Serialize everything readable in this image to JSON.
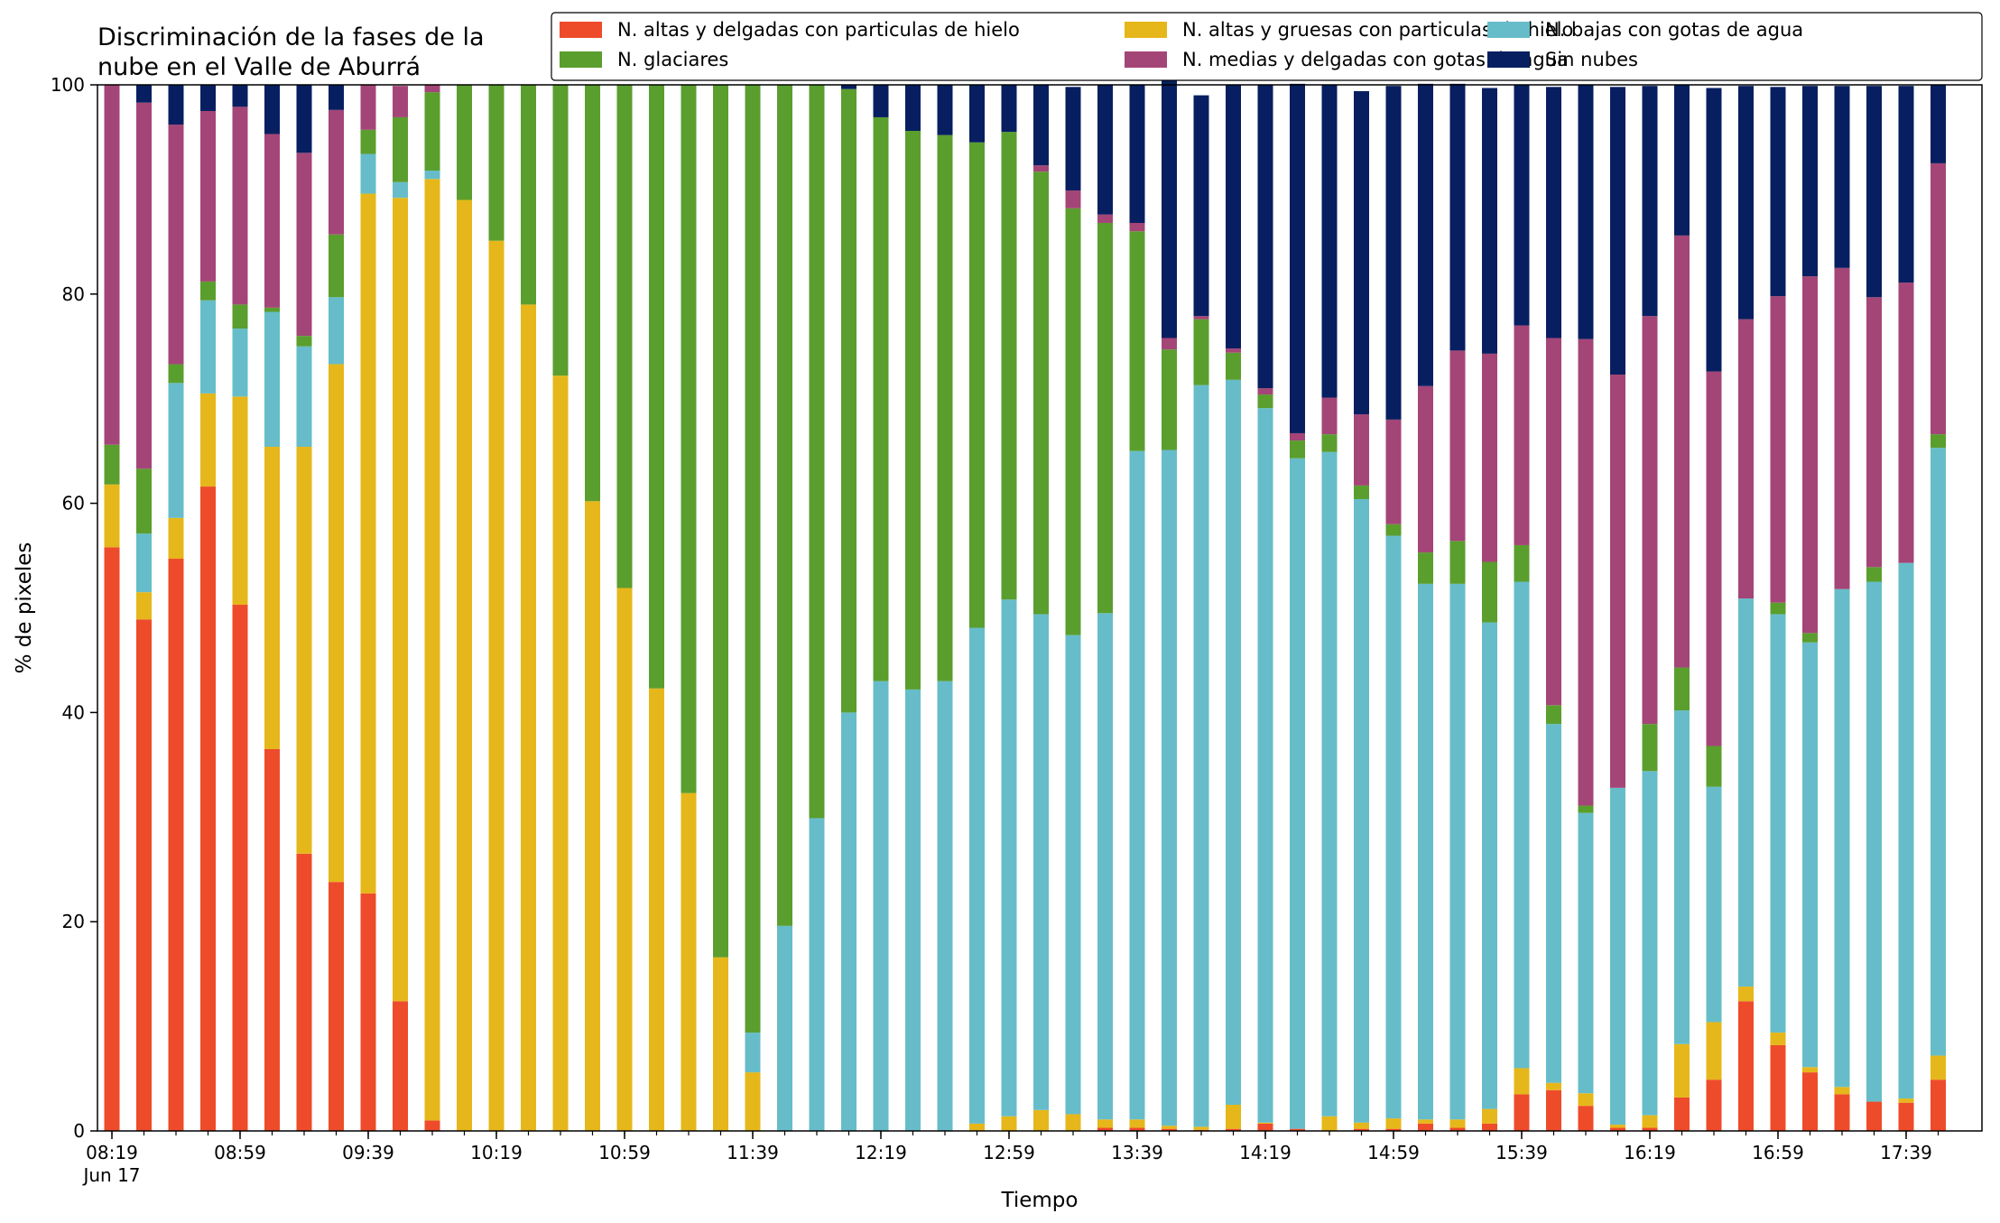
{
  "chart_data": {
    "type": "bar",
    "stacked": true,
    "title": [
      "Discriminación de la fases de la",
      "nube en el Valle de Aburrá"
    ],
    "xlabel": "Tiempo",
    "ylabel": "% de pixeles",
    "ylim": [
      0,
      100
    ],
    "yticks": [
      0,
      20,
      40,
      60,
      80,
      100
    ],
    "xtick_labels": [
      {
        "index": 0,
        "label": "08:19",
        "sublabel": "Jun 17"
      },
      {
        "index": 4,
        "label": "08:59"
      },
      {
        "index": 8,
        "label": "09:39"
      },
      {
        "index": 12,
        "label": "10:19"
      },
      {
        "index": 16,
        "label": "10:59"
      },
      {
        "index": 20,
        "label": "11:39"
      },
      {
        "index": 24,
        "label": "12:19"
      },
      {
        "index": 28,
        "label": "12:59"
      },
      {
        "index": 32,
        "label": "13:39"
      },
      {
        "index": 36,
        "label": "14:19"
      },
      {
        "index": 40,
        "label": "14:59"
      },
      {
        "index": 44,
        "label": "15:39"
      },
      {
        "index": 48,
        "label": "16:19"
      },
      {
        "index": 52,
        "label": "16:59"
      },
      {
        "index": 56,
        "label": "17:39"
      }
    ],
    "x_interval_minutes": 10,
    "legend": {
      "placement": "top-right",
      "columns": 3
    },
    "series": [
      {
        "name": "N. altas y delgadas con particulas de hielo",
        "color": "#ee4b2b",
        "values": [
          55.8,
          48.9,
          54.7,
          61.6,
          50.3,
          36.5,
          26.5,
          23.8,
          22.7,
          12.4,
          1.0,
          0,
          0,
          0,
          0,
          0,
          0,
          0,
          0,
          0,
          0,
          0,
          0,
          0,
          0,
          0,
          0,
          0,
          0,
          0,
          0,
          0.3,
          0.3,
          0.2,
          0.1,
          0.2,
          0.7,
          0.2,
          0,
          0.2,
          0.2,
          0.7,
          0.3,
          0.7,
          3.5,
          3.9,
          2.4,
          0.3,
          0.3,
          3.2,
          4.9,
          12.4,
          8.2,
          5.6,
          3.5,
          2.8,
          2.7,
          4.9
        ]
      },
      {
        "name": "N. altas y gruesas con particulas de hielo",
        "color": "#e6b71a",
        "values": [
          6.0,
          2.6,
          3.9,
          8.9,
          19.9,
          28.9,
          38.9,
          49.5,
          66.9,
          76.8,
          90.0,
          89.0,
          85.1,
          79.0,
          72.2,
          60.2,
          51.9,
          42.3,
          32.3,
          16.6,
          5.6,
          0,
          0,
          0,
          0,
          0,
          0,
          0.7,
          1.4,
          2.0,
          1.6,
          0.8,
          0.8,
          0.3,
          0.3,
          2.3,
          0.1,
          0,
          1.4,
          0.6,
          1.0,
          0.4,
          0.8,
          1.4,
          2.5,
          0.7,
          1.2,
          0.3,
          1.2,
          5.1,
          5.5,
          1.4,
          1.2,
          0.5,
          0.7,
          0,
          0.4,
          2.3
        ]
      },
      {
        "name": "N. bajas con gotas de agua",
        "color": "#66bdc9",
        "values": [
          0,
          5.6,
          12.9,
          8.9,
          6.5,
          12.9,
          9.6,
          6.4,
          3.8,
          1.5,
          0.8,
          0,
          0,
          0,
          0,
          0,
          0,
          0,
          0,
          0,
          3.8,
          19.6,
          29.9,
          40.0,
          43.0,
          42.2,
          43.0,
          47.4,
          49.4,
          47.4,
          45.8,
          48.4,
          63.9,
          64.6,
          70.9,
          69.3,
          68.3,
          64.1,
          63.5,
          59.6,
          55.7,
          51.2,
          51.2,
          46.5,
          46.5,
          34.3,
          26.8,
          32.2,
          32.9,
          31.9,
          22.5,
          37.1,
          40.0,
          40.6,
          47.6,
          49.7,
          51.2,
          58.1
        ]
      },
      {
        "name": "N. glaciares",
        "color": "#5a9e2e",
        "values": [
          3.8,
          6.2,
          1.8,
          1.8,
          2.3,
          0.4,
          1.0,
          6.0,
          2.3,
          6.2,
          7.5,
          11.0,
          14.9,
          21.0,
          27.8,
          39.8,
          48.1,
          57.7,
          67.7,
          83.4,
          90.6,
          80.4,
          70.1,
          59.6,
          53.9,
          53.4,
          52.2,
          46.4,
          44.7,
          42.3,
          40.8,
          37.3,
          21.0,
          9.6,
          6.3,
          2.6,
          1.3,
          1.7,
          1.7,
          1.3,
          1.1,
          3.0,
          4.1,
          5.8,
          3.5,
          1.8,
          0.7,
          0,
          4.5,
          4.1,
          3.9,
          0,
          1.1,
          0.9,
          0,
          1.4,
          0,
          1.3
        ]
      },
      {
        "name": "N. medias y delgadas con gotas de agua",
        "color": "#a44577",
        "values": [
          34.4,
          35.0,
          22.9,
          16.3,
          18.9,
          16.6,
          17.5,
          11.9,
          4.3,
          3.0,
          0.7,
          0,
          0,
          0,
          0,
          0,
          0,
          0,
          0,
          0,
          0,
          0,
          0,
          0,
          0,
          0,
          0,
          0,
          0,
          0.6,
          1.7,
          0.8,
          0.8,
          1.1,
          0.3,
          0.4,
          0.6,
          0.7,
          3.5,
          6.8,
          10.0,
          15.9,
          18.2,
          19.9,
          21.0,
          35.1,
          44.6,
          39.5,
          39.0,
          41.3,
          35.8,
          26.7,
          29.3,
          34.1,
          30.7,
          25.8,
          26.8,
          25.9
        ]
      },
      {
        "name": "Sin nubes",
        "color": "#071f60",
        "values": [
          0,
          1.7,
          3.8,
          2.5,
          2.1,
          4.7,
          6.5,
          2.4,
          0,
          0,
          0,
          0,
          0,
          0,
          0,
          0,
          0,
          0,
          0,
          0,
          0,
          0,
          0,
          0.4,
          3.1,
          4.4,
          4.8,
          5.5,
          4.5,
          7.7,
          9.9,
          12.4,
          13.2,
          25.4,
          21.1,
          25.2,
          29.0,
          33.4,
          29.9,
          30.9,
          31.9,
          28.9,
          25.5,
          25.4,
          23.0,
          24.0,
          24.3,
          27.5,
          22.0,
          14.4,
          27.1,
          22.3,
          20.0,
          18.2,
          17.4,
          20.2,
          18.8,
          7.5
        ]
      }
    ]
  }
}
